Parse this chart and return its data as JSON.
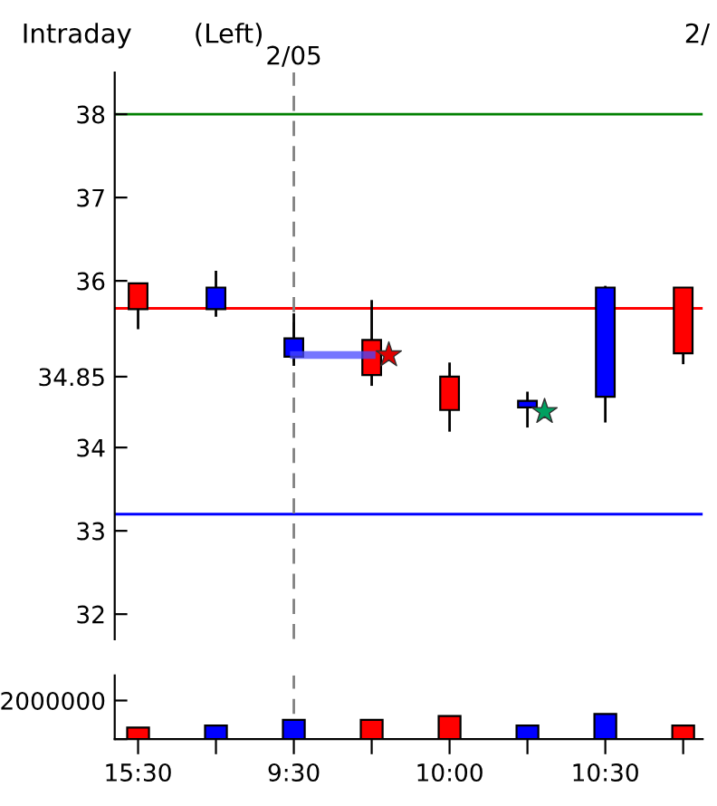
{
  "chart_data": [
    {
      "type": "candlestick",
      "categories": [
        "15:30",
        null,
        "9:30",
        null,
        "10:00",
        null,
        "10:30",
        null
      ],
      "ohlc": [
        [
          35.66,
          35.97,
          35.42,
          35.97
        ],
        [
          35.92,
          36.12,
          35.57,
          35.66
        ],
        [
          35.31,
          35.61,
          34.98,
          35.09
        ],
        [
          34.87,
          35.77,
          34.74,
          35.29
        ],
        [
          34.45,
          35.02,
          34.19,
          34.85
        ],
        [
          34.56,
          34.67,
          34.24,
          34.48
        ],
        [
          35.92,
          35.94,
          34.3,
          34.61
        ],
        [
          35.13,
          35.92,
          35.0,
          35.92
        ]
      ],
      "colors": [
        "#ff0000",
        "#0000ff",
        "#0000ff",
        "#ff0000",
        "#ff0000",
        "#0000ff",
        "#0000ff",
        "#ff0000"
      ],
      "series": [
        {
          "type": "line",
          "color": "#4848ff",
          "values": [
            null,
            null,
            35.11,
            35.11,
            null,
            null,
            null,
            null
          ]
        },
        {
          "type": "scatter",
          "marker": "star",
          "values": [
            null,
            null,
            null,
            35.11,
            null,
            34.43,
            null,
            null
          ],
          "colors": [
            null,
            null,
            null,
            "#e00000",
            null,
            "#00a060",
            null,
            null
          ]
        }
      ],
      "ylim": [
        31.7,
        38.5
      ],
      "yticks": [
        32,
        33,
        34,
        34.85,
        36,
        37,
        38
      ],
      "tick_labels": "y",
      "grid": false,
      "ref_lines": [
        {
          "axis": "y",
          "value": 38,
          "color": "#008000"
        },
        {
          "axis": "y",
          "value": 35.67,
          "color": "#ff0000"
        },
        {
          "axis": "y",
          "value": 33.2,
          "color": "#0000ff"
        },
        {
          "axis": "x",
          "value": "9:30",
          "label": "2/05",
          "color": "#808080",
          "line_style": "dashed"
        }
      ],
      "annotations": [
        "Intraday",
        "(Left)",
        "2/"
      ]
    },
    {
      "type": "bar",
      "categories": [
        "15:30",
        null,
        "9:30",
        null,
        "10:00",
        null,
        "10:30",
        null
      ],
      "values": [
        600000,
        700000,
        1000000,
        1000000,
        1200000,
        700000,
        1300000,
        700000
      ],
      "colors": [
        "#ff0000",
        "#0000ff",
        "#0000ff",
        "#ff0000",
        "#ff0000",
        "#0000ff",
        "#0000ff",
        "#ff0000"
      ],
      "ylim": [
        0,
        3300000
      ],
      "yticks": [
        {
          "value": 0,
          "label": null
        },
        2000000
      ],
      "grid": false,
      "ref_lines": [
        {
          "axis": "x",
          "value": "9:30",
          "color": "#808080",
          "line_style": "dashed"
        }
      ]
    }
  ]
}
